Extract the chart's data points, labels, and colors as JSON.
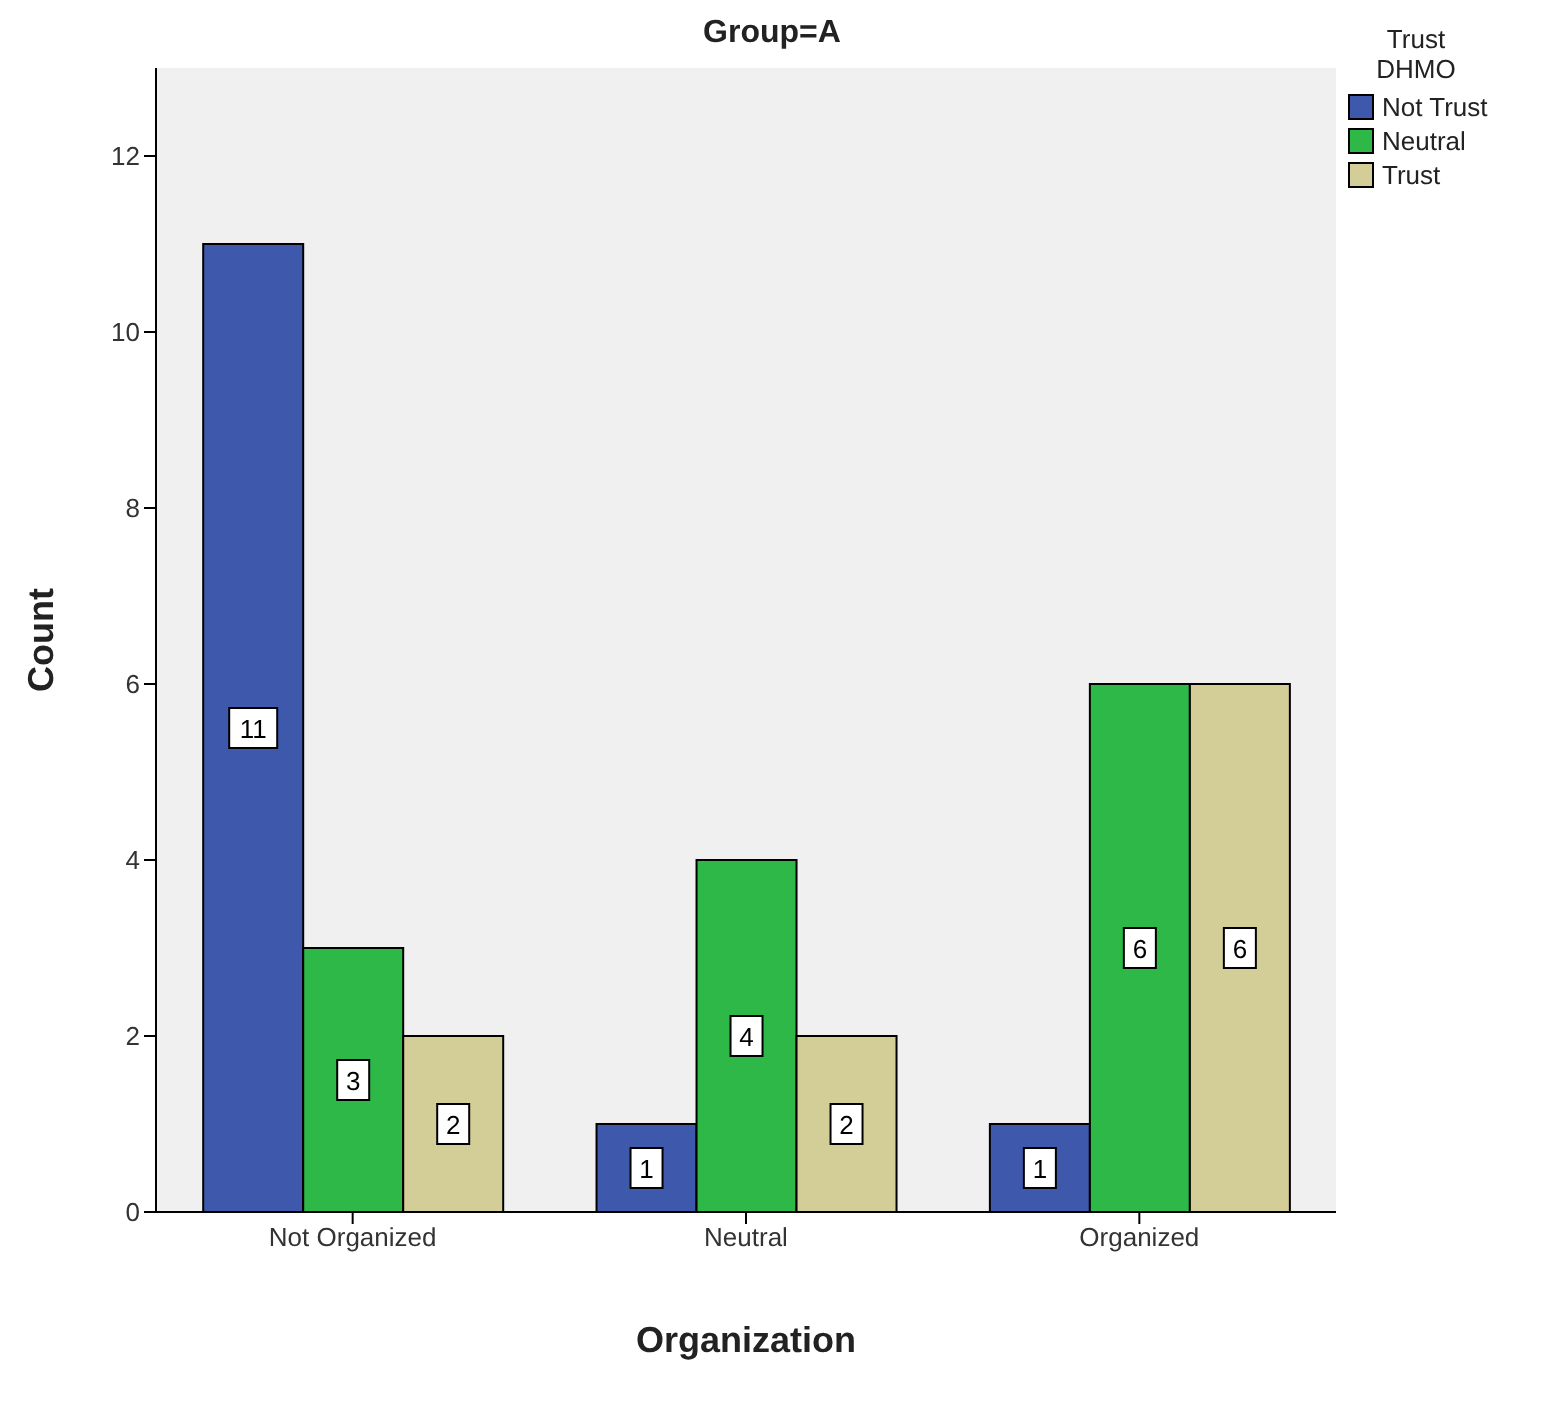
{
  "chart_data": {
    "type": "bar",
    "title": "Group=A",
    "xlabel": "Organization",
    "ylabel": "Count",
    "legend_title": "Trust DHMO",
    "categories": [
      "Not Organized",
      "Neutral",
      "Organized"
    ],
    "series": [
      {
        "name": "Not Trust",
        "color": "#3e58ac",
        "values": [
          11,
          1,
          1
        ]
      },
      {
        "name": "Neutral",
        "color": "#2eb848",
        "values": [
          3,
          4,
          6
        ]
      },
      {
        "name": "Trust",
        "color": "#d3ce97",
        "values": [
          2,
          2,
          6
        ]
      }
    ],
    "ylim": [
      0,
      13
    ],
    "yticks": [
      0,
      2,
      4,
      6,
      8,
      10,
      12
    ],
    "legend": "top right",
    "data_labels": true
  }
}
